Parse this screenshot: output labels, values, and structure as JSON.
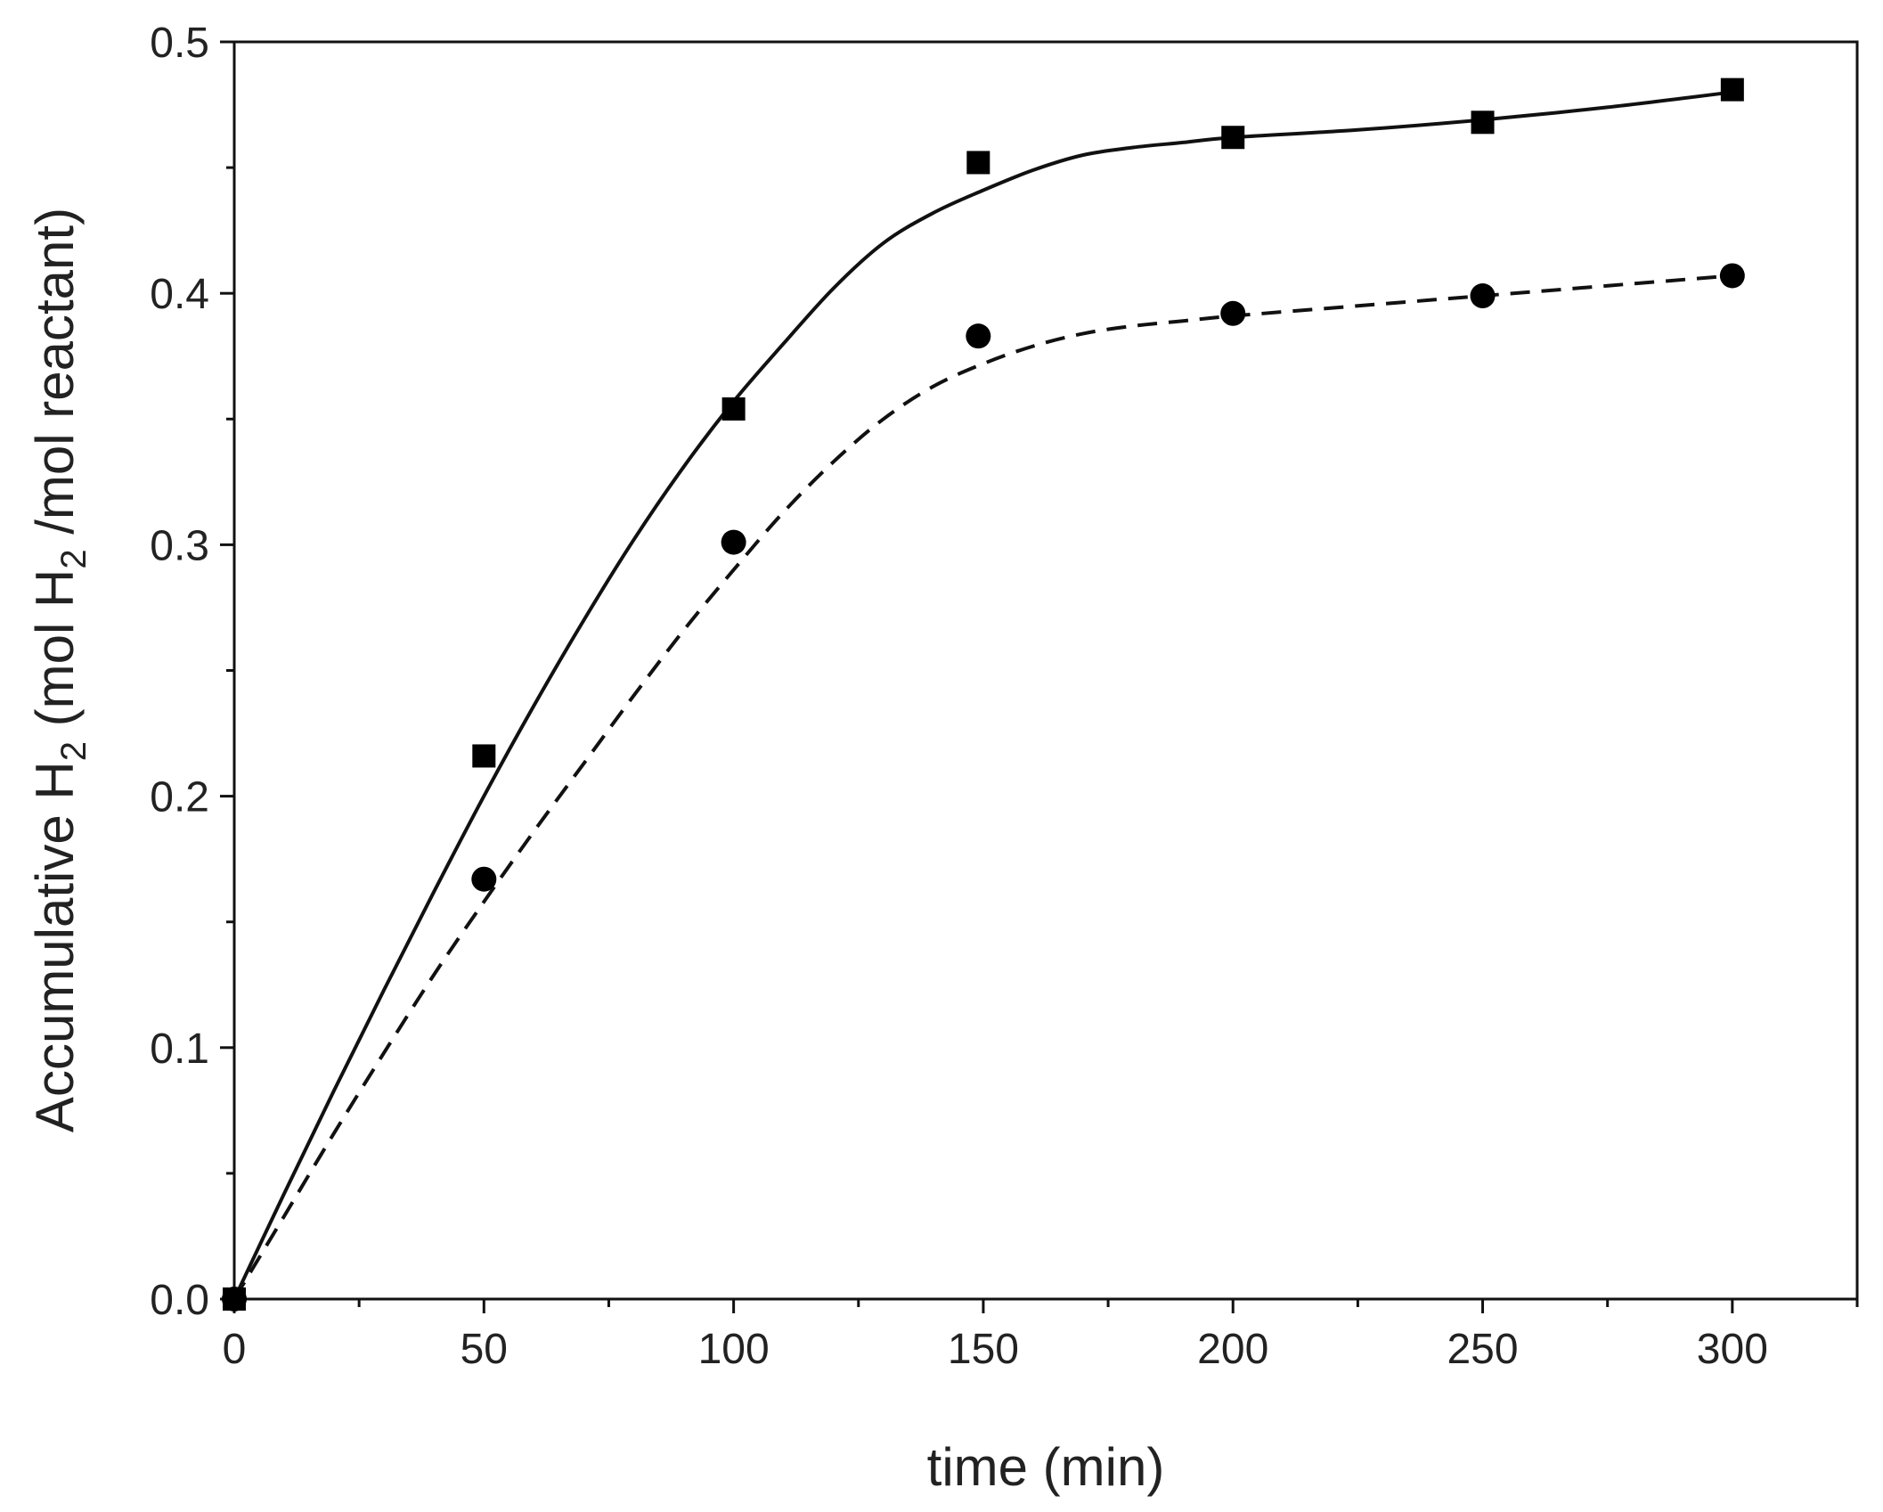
{
  "chart_data": {
    "type": "scatter",
    "title": "",
    "xlabel": "time (min)",
    "ylabel": {
      "parts": [
        "Accumulative H",
        "2",
        " (mol H",
        "2",
        " /mol reactant)"
      ]
    },
    "xlim": [
      0,
      325
    ],
    "ylim": [
      0,
      0.5
    ],
    "x_major_ticks": [
      0,
      50,
      100,
      150,
      200,
      250,
      300
    ],
    "x_tick_labels": [
      "0",
      "50",
      "100",
      "150",
      "200",
      "250",
      "300"
    ],
    "x_minor_ticks": [
      25,
      75,
      125,
      175,
      225,
      275,
      325
    ],
    "y_major_ticks": [
      0.0,
      0.1,
      0.2,
      0.3,
      0.4,
      0.5
    ],
    "y_tick_labels": [
      "0.0",
      "0.1",
      "0.2",
      "0.3",
      "0.4",
      "0.5"
    ],
    "y_minor_ticks": [
      0.05,
      0.15,
      0.25,
      0.35,
      0.45
    ],
    "grid": false,
    "legend": null,
    "series": [
      {
        "name": "square markers",
        "marker": "square",
        "line_style": "solid",
        "x": [
          0,
          50,
          100,
          149,
          200,
          250,
          300
        ],
        "y": [
          0.0,
          0.216,
          0.354,
          0.452,
          0.462,
          0.468,
          0.481
        ],
        "fit_x": [
          0,
          10,
          20,
          30,
          40,
          50,
          60,
          70,
          80,
          90,
          100,
          110,
          120,
          130,
          140,
          150,
          160,
          170,
          180,
          190,
          200,
          225,
          250,
          275,
          300
        ],
        "fit_y": [
          0.0,
          0.042,
          0.083,
          0.123,
          0.162,
          0.2,
          0.236,
          0.27,
          0.302,
          0.331,
          0.357,
          0.38,
          0.402,
          0.42,
          0.432,
          0.441,
          0.449,
          0.455,
          0.458,
          0.46,
          0.462,
          0.465,
          0.469,
          0.474,
          0.48
        ]
      },
      {
        "name": "circle markers",
        "marker": "circle",
        "line_style": "dashed",
        "x": [
          0,
          50,
          100,
          149,
          200,
          250,
          300
        ],
        "y": [
          0.0,
          0.167,
          0.301,
          0.383,
          0.392,
          0.399,
          0.407
        ],
        "fit_x": [
          0,
          10,
          20,
          30,
          40,
          50,
          60,
          70,
          80,
          90,
          100,
          110,
          120,
          130,
          140,
          150,
          160,
          170,
          180,
          190,
          200,
          225,
          250,
          275,
          300
        ],
        "fit_y": [
          0.0,
          0.033,
          0.066,
          0.098,
          0.129,
          0.158,
          0.186,
          0.213,
          0.24,
          0.266,
          0.29,
          0.313,
          0.333,
          0.35,
          0.363,
          0.372,
          0.379,
          0.384,
          0.387,
          0.389,
          0.391,
          0.395,
          0.399,
          0.403,
          0.407
        ]
      }
    ]
  }
}
